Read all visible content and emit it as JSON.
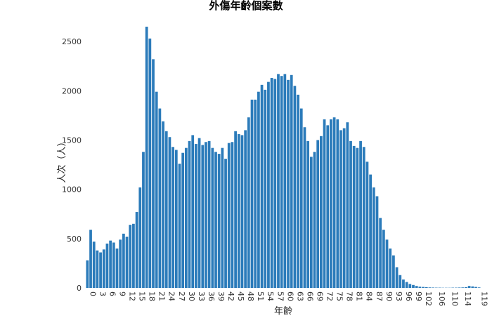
{
  "chart_data": {
    "type": "bar",
    "title": "外傷年齡個案數",
    "xlabel": "年齡",
    "ylabel": "人次（人）",
    "ylim": [
      0,
      2700
    ],
    "yticks": [
      0,
      500,
      1000,
      1500,
      2000,
      2500
    ],
    "xticks": [
      0,
      3,
      6,
      9,
      12,
      15,
      18,
      21,
      24,
      27,
      30,
      33,
      36,
      39,
      42,
      45,
      48,
      51,
      54,
      57,
      60,
      63,
      66,
      69,
      72,
      75,
      78,
      81,
      84,
      87,
      90,
      93,
      96,
      99,
      102,
      106,
      110,
      114,
      119
    ],
    "bar_color": "#2b7bba",
    "x": [
      0,
      1,
      2,
      3,
      4,
      5,
      6,
      7,
      8,
      9,
      10,
      11,
      12,
      13,
      14,
      15,
      16,
      17,
      18,
      19,
      20,
      21,
      22,
      23,
      24,
      25,
      26,
      27,
      28,
      29,
      30,
      31,
      32,
      33,
      34,
      35,
      36,
      37,
      38,
      39,
      40,
      41,
      42,
      43,
      44,
      45,
      46,
      47,
      48,
      49,
      50,
      51,
      52,
      53,
      54,
      55,
      56,
      57,
      58,
      59,
      60,
      61,
      62,
      63,
      64,
      65,
      66,
      67,
      68,
      69,
      70,
      71,
      72,
      73,
      74,
      75,
      76,
      77,
      78,
      79,
      80,
      81,
      82,
      83,
      84,
      85,
      86,
      87,
      88,
      89,
      90,
      91,
      92,
      93,
      94,
      95,
      96,
      97,
      98,
      99,
      100,
      101,
      102,
      103,
      104,
      105,
      106,
      107,
      108,
      109,
      110,
      111,
      112,
      113,
      114,
      115,
      116,
      117,
      118,
      119
    ],
    "values": [
      280,
      590,
      470,
      380,
      360,
      390,
      450,
      480,
      460,
      400,
      490,
      550,
      520,
      640,
      650,
      770,
      1020,
      1380,
      2650,
      2530,
      2320,
      1990,
      1820,
      1690,
      1590,
      1530,
      1430,
      1400,
      1260,
      1370,
      1420,
      1490,
      1550,
      1460,
      1520,
      1450,
      1480,
      1490,
      1420,
      1380,
      1360,
      1420,
      1310,
      1470,
      1480,
      1590,
      1560,
      1550,
      1600,
      1730,
      1910,
      1910,
      1990,
      2060,
      2010,
      2090,
      2130,
      2120,
      2170,
      2150,
      2170,
      2110,
      2160,
      2050,
      1960,
      1820,
      1630,
      1490,
      1330,
      1380,
      1500,
      1540,
      1710,
      1650,
      1710,
      1730,
      1710,
      1600,
      1620,
      1680,
      1490,
      1440,
      1420,
      1490,
      1430,
      1280,
      1150,
      1020,
      930,
      710,
      590,
      490,
      400,
      330,
      210,
      130,
      85,
      60,
      40,
      30,
      20,
      12,
      10,
      8,
      5,
      4,
      3,
      3,
      2,
      2,
      2,
      3,
      3,
      4,
      5,
      8,
      20,
      15,
      10,
      5
    ]
  }
}
